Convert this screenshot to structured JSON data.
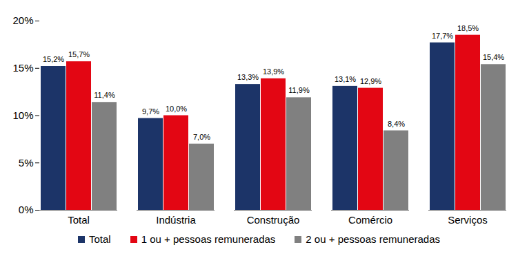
{
  "chart_data": {
    "type": "bar",
    "categories": [
      "Total",
      "Indústria",
      "Construção",
      "Comércio",
      "Serviços"
    ],
    "series": [
      {
        "name": "Total",
        "color": "#1c3468",
        "values": [
          15.2,
          9.7,
          13.3,
          13.1,
          17.7
        ],
        "value_labels": [
          "15,2%",
          "9,7%",
          "13,3%",
          "13,1%",
          "17,7%"
        ]
      },
      {
        "name": "1 ou + pessoas remuneradas",
        "color": "#e30613",
        "values": [
          15.7,
          10.0,
          13.9,
          12.9,
          18.5
        ],
        "value_labels": [
          "15,7%",
          "10,0%",
          "13,9%",
          "12,9%",
          "18,5%"
        ]
      },
      {
        "name": "2 ou + pessoas remuneradas",
        "color": "#808080",
        "values": [
          11.4,
          7.0,
          11.9,
          8.4,
          15.4
        ],
        "value_labels": [
          "11,4%",
          "7,0%",
          "11,9%",
          "8,4%",
          "15,4%"
        ]
      }
    ],
    "ylim": [
      0,
      20
    ],
    "yticks": [
      {
        "value": 0,
        "label": "0%"
      },
      {
        "value": 5,
        "label": "5%"
      },
      {
        "value": 10,
        "label": "10%"
      },
      {
        "value": 15,
        "label": "15%"
      },
      {
        "value": 20,
        "label": "20%"
      }
    ],
    "grid": false,
    "data_labels": true,
    "legend": "bottom"
  }
}
